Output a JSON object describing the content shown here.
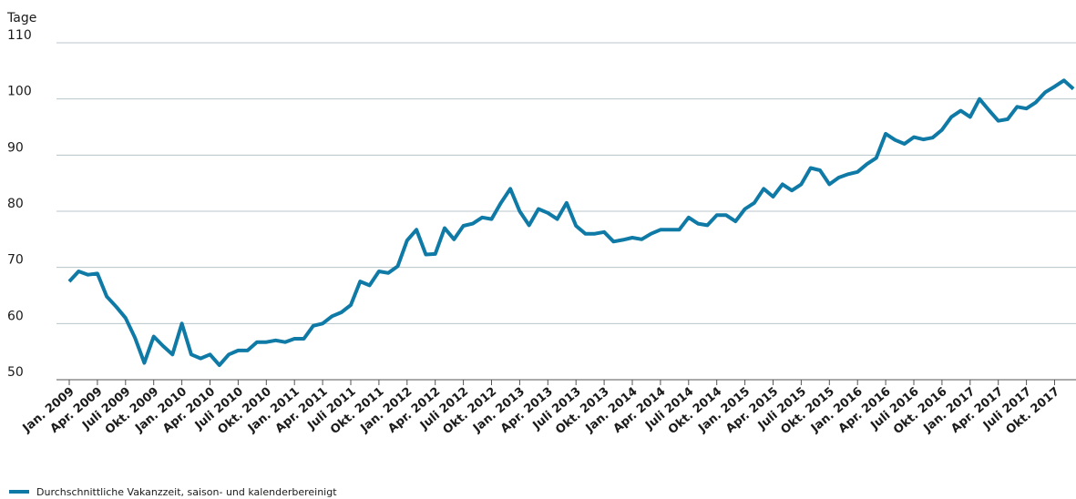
{
  "chart_data": {
    "type": "line",
    "y_label": "Tage",
    "categories": [
      "Jan. 2009",
      null,
      null,
      "Apr. 2009",
      null,
      null,
      "Juli 2009",
      null,
      null,
      "Okt. 2009",
      null,
      null,
      "Jan. 2010",
      null,
      null,
      "Apr. 2010",
      null,
      null,
      "Juli 2010",
      null,
      null,
      "Okt. 2010",
      null,
      null,
      "Jan. 2011",
      null,
      null,
      "Apr. 2011",
      null,
      null,
      "Juli 2011",
      null,
      null,
      "Okt. 2011",
      null,
      null,
      "Jan. 2012",
      null,
      null,
      "Apr. 2012",
      null,
      null,
      "Juli 2012",
      null,
      null,
      "Okt. 2012",
      null,
      null,
      "Jan. 2013",
      null,
      null,
      "Apr. 2013",
      null,
      null,
      "Juli 2013",
      null,
      null,
      "Okt. 2013",
      null,
      null,
      "Jan. 2014",
      null,
      null,
      "Apr. 2014",
      null,
      null,
      "Juli 2014",
      null,
      null,
      "Okt. 2014",
      null,
      null,
      "Jan. 2015",
      null,
      null,
      "Apr. 2015",
      null,
      null,
      "Juli 2015",
      null,
      null,
      "Okt. 2015",
      null,
      null,
      "Jan. 2016",
      null,
      null,
      "Apr. 2016",
      null,
      null,
      "Juli 2016",
      null,
      null,
      "Okt. 2016",
      null,
      null,
      "Jan. 2017",
      null,
      null,
      "Apr. 2017",
      null,
      null,
      "Juli 2017",
      null,
      null,
      "Okt. 2017",
      null,
      null
    ],
    "series": [
      {
        "name": "Durchschnittliche Vakanzzeit, saison- und kalenderbereinigt",
        "color": "#0f7aa6",
        "values": [
          67.5,
          69.3,
          68.7,
          68.9,
          64.8,
          63,
          61,
          57.5,
          53,
          57.7,
          56,
          54.5,
          60,
          54.5,
          53.8,
          54.5,
          52.6,
          54.5,
          55.2,
          55.2,
          56.7,
          56.7,
          57,
          56.7,
          57.3,
          57.3,
          59.6,
          60,
          61.3,
          62,
          63.3,
          67.5,
          66.8,
          69.3,
          69,
          70.2,
          74.8,
          76.7,
          72.3,
          72.4,
          77,
          75,
          77.4,
          77.8,
          78.9,
          78.6,
          81.5,
          84,
          80,
          77.5,
          80.4,
          79.7,
          78.6,
          81.5,
          77.4,
          76,
          76,
          76.3,
          74.6,
          74.9,
          75.3,
          75,
          76,
          76.7,
          76.7,
          76.7,
          78.9,
          77.8,
          77.5,
          79.3,
          79.3,
          78.2,
          80.4,
          81.5,
          84,
          82.6,
          84.8,
          83.7,
          84.8,
          87.7,
          87.3,
          84.8,
          86,
          86.6,
          87,
          88.4,
          89.5,
          93.8,
          92.7,
          92,
          93.2,
          92.8,
          93.1,
          94.5,
          96.8,
          97.9,
          96.8,
          100,
          98,
          96.1,
          96.4,
          98.6,
          98.3,
          99.4,
          101.2,
          102.2,
          103.3,
          101.8
        ]
      }
    ],
    "ylim": [
      50,
      110
    ],
    "yticks": [
      50,
      60,
      70,
      80,
      90,
      100,
      110
    ],
    "grid": true
  }
}
